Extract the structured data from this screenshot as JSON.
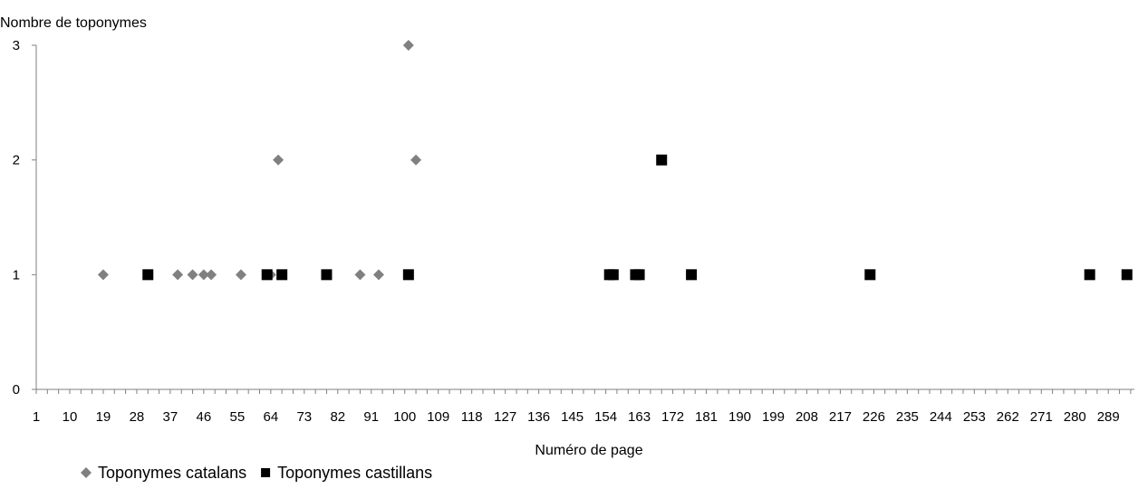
{
  "chart_data": {
    "type": "scatter",
    "title": "",
    "xlabel": "Numéro de page",
    "ylabel": "Nombre de toponymes",
    "xlim": [
      1,
      296
    ],
    "ylim": [
      0,
      3
    ],
    "x_tick_labels": [
      "1",
      "10",
      "19",
      "28",
      "37",
      "46",
      "55",
      "64",
      "73",
      "82",
      "91",
      "100",
      "109",
      "118",
      "127",
      "136",
      "145",
      "154",
      "163",
      "172",
      "181",
      "190",
      "199",
      "208",
      "217",
      "226",
      "235",
      "244",
      "253",
      "262",
      "271",
      "280",
      "289"
    ],
    "y_tick_labels": [
      "0",
      "1",
      "2",
      "3"
    ],
    "grid": false,
    "legend_position": "bottom-left",
    "series": [
      {
        "name": "Toponymes catalans",
        "marker": "diamond",
        "color": "#808080",
        "points": [
          {
            "x": 19,
            "y": 1
          },
          {
            "x": 39,
            "y": 1
          },
          {
            "x": 43,
            "y": 1
          },
          {
            "x": 46,
            "y": 1
          },
          {
            "x": 48,
            "y": 1
          },
          {
            "x": 56,
            "y": 1
          },
          {
            "x": 64,
            "y": 1
          },
          {
            "x": 66,
            "y": 2
          },
          {
            "x": 88,
            "y": 1
          },
          {
            "x": 93,
            "y": 1
          },
          {
            "x": 101,
            "y": 3
          },
          {
            "x": 103,
            "y": 2
          }
        ]
      },
      {
        "name": "Toponymes castillans",
        "marker": "square",
        "color": "#000000",
        "points": [
          {
            "x": 31,
            "y": 1
          },
          {
            "x": 63,
            "y": 1
          },
          {
            "x": 67,
            "y": 1
          },
          {
            "x": 79,
            "y": 1
          },
          {
            "x": 101,
            "y": 1
          },
          {
            "x": 155,
            "y": 1
          },
          {
            "x": 156,
            "y": 1
          },
          {
            "x": 162,
            "y": 1
          },
          {
            "x": 163,
            "y": 1
          },
          {
            "x": 169,
            "y": 2
          },
          {
            "x": 177,
            "y": 1
          },
          {
            "x": 225,
            "y": 1
          },
          {
            "x": 284,
            "y": 1
          },
          {
            "x": 294,
            "y": 1
          }
        ]
      }
    ]
  }
}
